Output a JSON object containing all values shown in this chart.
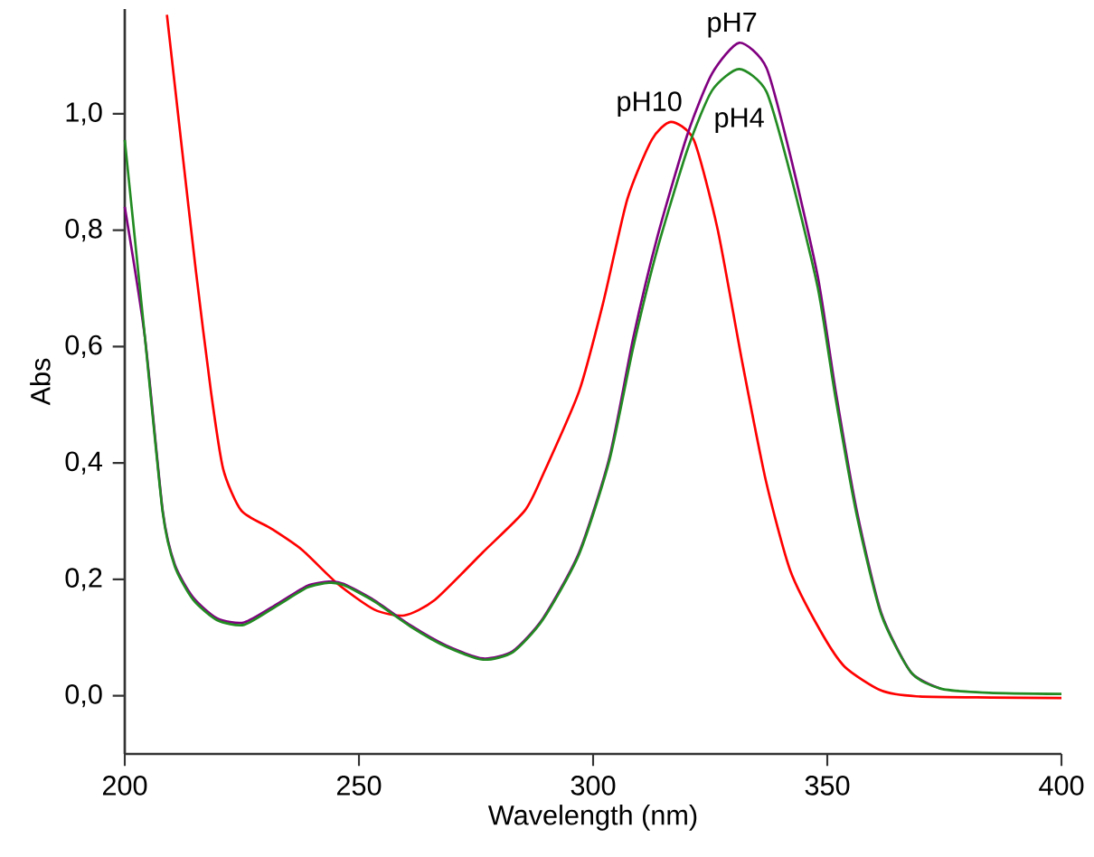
{
  "chart_data": {
    "type": "line",
    "xlabel": "Wavelength (nm)",
    "ylabel": "Abs",
    "xlim": [
      200,
      400
    ],
    "ylim": [
      -0.1,
      1.18
    ],
    "xticks": [
      200,
      250,
      300,
      350,
      400
    ],
    "yticks": [
      {
        "value": 0,
        "label": "0,0"
      },
      {
        "value": 0.2,
        "label": "0,2"
      },
      {
        "value": 0.4,
        "label": "0,4"
      },
      {
        "value": 0.6,
        "label": "0,6"
      },
      {
        "value": 0.8,
        "label": "0,8"
      },
      {
        "value": 1.0,
        "label": "1,0"
      }
    ],
    "grid": false,
    "legend": false,
    "marker": "none",
    "line_style": "solid",
    "series": [
      {
        "name": "pH10",
        "color": "#ff0000",
        "x": [
          209,
          212,
          215.2,
          218.4,
          221,
          224.9,
          231.3,
          237.8,
          245.5,
          253.3,
          259.7,
          266.1,
          276.4,
          285.4,
          289.3,
          297,
          302.2,
          307.3,
          312.5,
          316.6,
          321.5,
          326.6,
          331.8,
          336.9,
          342.1,
          348.5,
          353.7,
          361.5,
          369,
          385,
          400
        ],
        "values": [
          1.17,
          0.955,
          0.729,
          0.523,
          0.39,
          0.318,
          0.287,
          0.251,
          0.192,
          0.148,
          0.138,
          0.164,
          0.246,
          0.318,
          0.38,
          0.523,
          0.677,
          0.853,
          0.955,
          0.986,
          0.955,
          0.801,
          0.575,
          0.369,
          0.215,
          0.112,
          0.05,
          0.009,
          -0.001,
          -0.003,
          -0.004
        ]
      },
      {
        "name": "pH7",
        "color": "#800080",
        "x": [
          200,
          204.3,
          208.1,
          210.7,
          214.6,
          219.7,
          225.5,
          232.6,
          239,
          243.6,
          246.8,
          253.3,
          261,
          268.7,
          276.5,
          282.9,
          289.3,
          297,
          303.5,
          308.6,
          313.8,
          320.2,
          325.4,
          331.2,
          337,
          342.2,
          348,
          351.8,
          356.3,
          361.5,
          367.9,
          374.3
        ],
        "values": [
          0.84,
          0.616,
          0.318,
          0.225,
          0.169,
          0.133,
          0.126,
          0.158,
          0.189,
          0.196,
          0.192,
          0.164,
          0.121,
          0.086,
          0.064,
          0.077,
          0.133,
          0.246,
          0.41,
          0.616,
          0.791,
          0.966,
          1.069,
          1.122,
          1.079,
          0.925,
          0.719,
          0.523,
          0.318,
          0.143,
          0.04,
          0.012
        ]
      },
      {
        "name": "pH4",
        "color": "#228b22",
        "x": [
          200,
          204.3,
          208.1,
          210.7,
          214.6,
          219.7,
          225.5,
          232.6,
          239,
          243.6,
          246.8,
          253.3,
          261,
          268.7,
          276.5,
          282.9,
          289.3,
          297,
          303.5,
          308.6,
          313.8,
          320.2,
          325.4,
          331.2,
          337,
          342.2,
          348,
          351.8,
          356.3,
          361.5,
          367.9,
          374.3,
          384.6,
          400
        ],
        "values": [
          0.955,
          0.616,
          0.315,
          0.222,
          0.165,
          0.13,
          0.122,
          0.155,
          0.186,
          0.194,
          0.19,
          0.162,
          0.119,
          0.084,
          0.062,
          0.075,
          0.131,
          0.243,
          0.405,
          0.6,
          0.77,
          0.94,
          1.04,
          1.077,
          1.038,
          0.894,
          0.7,
          0.51,
          0.31,
          0.14,
          0.04,
          0.012,
          0.005,
          0.003
        ]
      }
    ]
  }
}
